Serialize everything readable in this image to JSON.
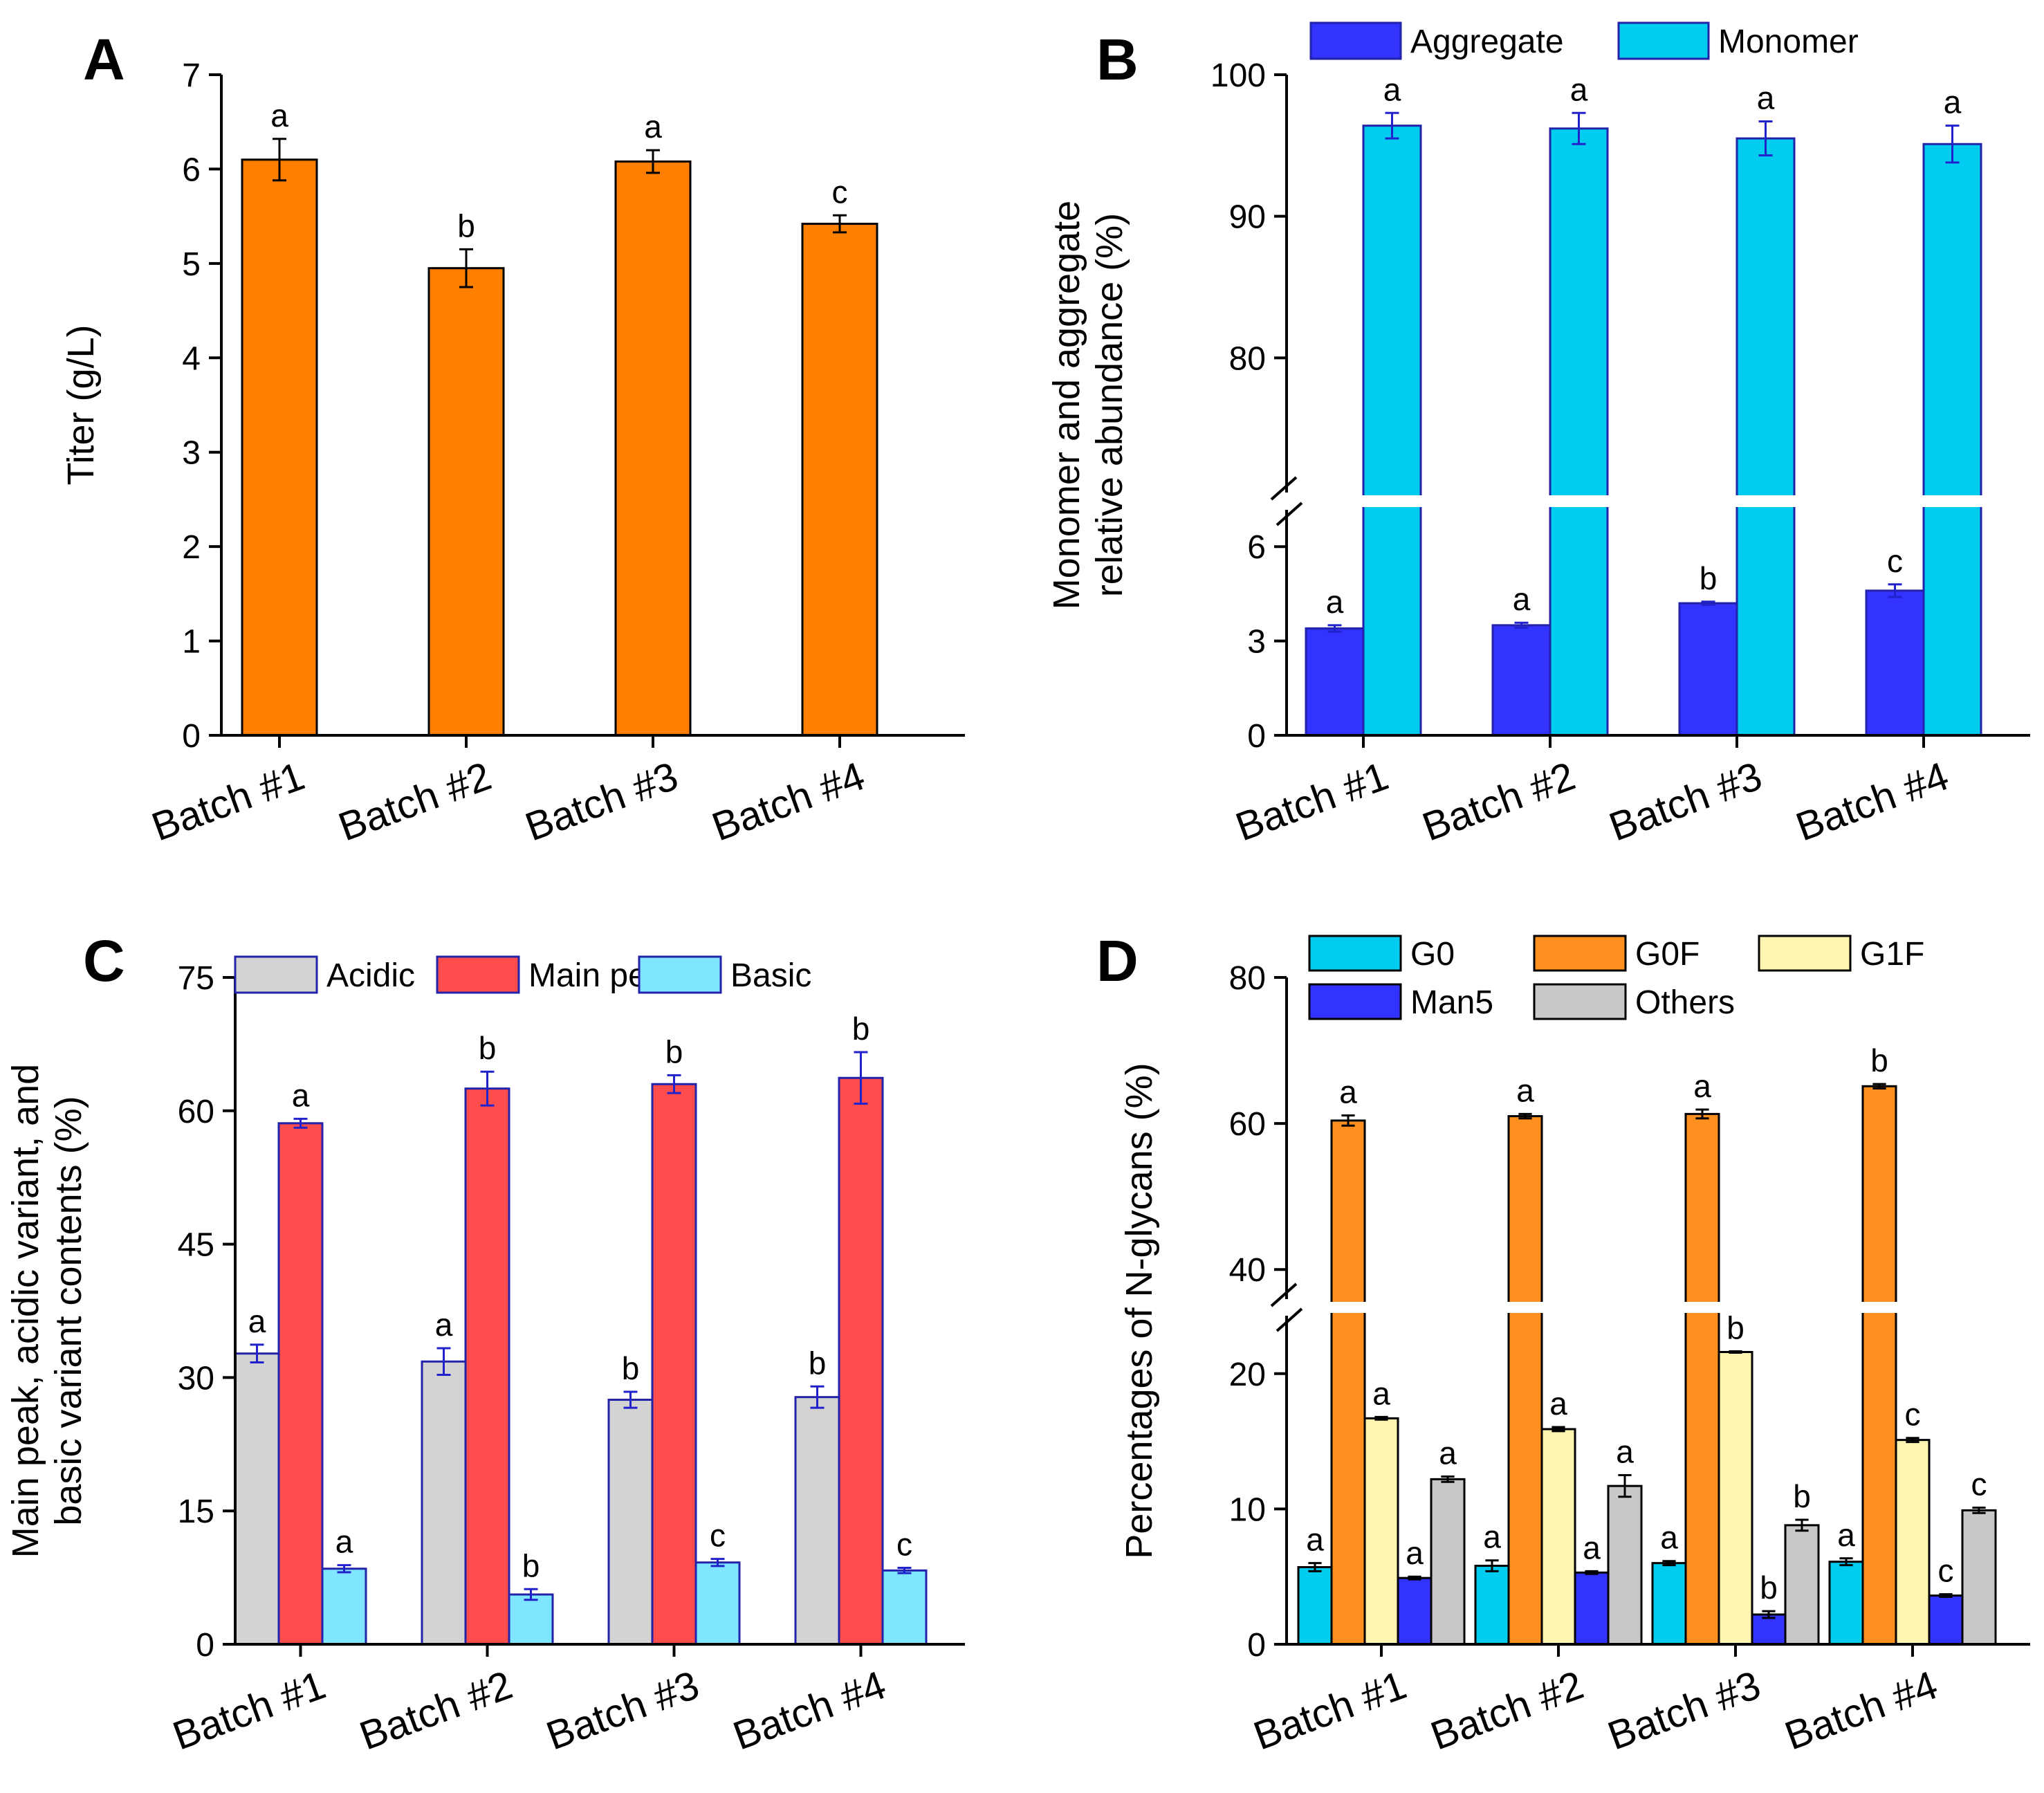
{
  "chart_data": [
    {
      "panel": "A",
      "type": "bar",
      "categories": [
        "Batch #1",
        "Batch #2",
        "Batch #3",
        "Batch #4"
      ],
      "ylabel": "Titer (g/L)",
      "ylim": [
        0,
        7
      ],
      "yticks": [
        0,
        1,
        2,
        3,
        4,
        5,
        6,
        7
      ],
      "series": [
        {
          "name": "Titer",
          "color": "#ff8000",
          "values": [
            6.1,
            4.95,
            6.08,
            5.42
          ],
          "errors": [
            0.22,
            0.2,
            0.12,
            0.09
          ],
          "labels": [
            "a",
            "b",
            "a",
            "c"
          ]
        }
      ]
    },
    {
      "panel": "B",
      "type": "bar",
      "categories": [
        "Batch #1",
        "Batch #2",
        "Batch #3",
        "Batch #4"
      ],
      "ylabel": "Monomer and aggregate relative abundance (%)",
      "ylabel_lines": [
        "Monomer and aggregate",
        "relative abundance (%)"
      ],
      "axis_break": {
        "lower": [
          0,
          7.5
        ],
        "upper": [
          70,
          100
        ]
      },
      "yticks": [
        0,
        3,
        6,
        80,
        90,
        100
      ],
      "legend": "top",
      "series": [
        {
          "name": "Aggregate",
          "color": "#3333ff",
          "values": [
            3.4,
            3.5,
            4.2,
            4.6
          ],
          "errors": [
            0.1,
            0.08,
            0.05,
            0.2
          ],
          "labels": [
            "a",
            "a",
            "b",
            "c"
          ]
        },
        {
          "name": "Monomer",
          "color": "#00ccf0",
          "values": [
            96.4,
            96.2,
            95.5,
            95.1
          ],
          "errors": [
            0.9,
            1.1,
            1.2,
            1.3
          ],
          "labels": [
            "a",
            "a",
            "a",
            "a"
          ]
        }
      ]
    },
    {
      "panel": "C",
      "type": "bar",
      "categories": [
        "Batch #1",
        "Batch #2",
        "Batch #3",
        "Batch #4"
      ],
      "ylabel": "Main peak, acidic variant, and basic variant contents (%)",
      "ylabel_lines": [
        "Main peak, acidic variant, and",
        "basic variant contents (%)"
      ],
      "ylim": [
        0,
        75
      ],
      "yticks": [
        0,
        15,
        30,
        45,
        60,
        75
      ],
      "legend": "top",
      "series": [
        {
          "name": "Acidic",
          "color": "#d3d3d3",
          "values": [
            32.7,
            31.8,
            27.5,
            27.8
          ],
          "errors": [
            1.0,
            1.5,
            0.9,
            1.2
          ],
          "labels": [
            "a",
            "a",
            "b",
            "b"
          ]
        },
        {
          "name": "Main peak",
          "color": "#ff4d4d",
          "values": [
            58.6,
            62.5,
            63.0,
            63.7
          ],
          "errors": [
            0.5,
            1.9,
            1.0,
            2.9
          ],
          "labels": [
            "a",
            "b",
            "b",
            "b"
          ]
        },
        {
          "name": "Basic",
          "color": "#80e6ff",
          "values": [
            8.5,
            5.6,
            9.2,
            8.3
          ],
          "errors": [
            0.4,
            0.6,
            0.4,
            0.3
          ],
          "labels": [
            "a",
            "b",
            "c",
            "c"
          ]
        }
      ]
    },
    {
      "panel": "D",
      "type": "bar",
      "categories": [
        "Batch #1",
        "Batch #2",
        "Batch #3",
        "Batch #4"
      ],
      "ylabel": "Percentages of N-glycans (%)",
      "axis_break": {
        "lower": [
          0,
          25
        ],
        "upper": [
          35,
          80
        ]
      },
      "yticks": [
        0,
        10,
        20,
        40,
        60,
        80
      ],
      "legend": "top",
      "series": [
        {
          "name": "G0",
          "color": "#00ccf0",
          "values": [
            5.7,
            5.8,
            6.0,
            6.1
          ],
          "errors": [
            0.3,
            0.4,
            0.15,
            0.25
          ],
          "labels": [
            "a",
            "a",
            "a",
            "a"
          ]
        },
        {
          "name": "G0F",
          "color": "#ff9020",
          "values": [
            60.4,
            61.0,
            61.3,
            65.1
          ],
          "errors": [
            0.7,
            0.3,
            0.6,
            0.3
          ],
          "labels": [
            "a",
            "a",
            "a",
            "b"
          ]
        },
        {
          "name": "G1F",
          "color": "#fff5b0",
          "values": [
            16.7,
            15.9,
            21.6,
            15.1
          ],
          "errors": [
            0.1,
            0.15,
            0.05,
            0.15
          ],
          "labels": [
            "a",
            "a",
            "b",
            "c"
          ]
        },
        {
          "name": "Man5",
          "color": "#3333ff",
          "values": [
            4.9,
            5.3,
            2.2,
            3.6
          ],
          "errors": [
            0.1,
            0.1,
            0.25,
            0.1
          ],
          "labels": [
            "a",
            "a",
            "b",
            "c"
          ]
        },
        {
          "name": "Others",
          "color": "#c8c8c8",
          "values": [
            12.2,
            11.7,
            8.8,
            9.9
          ],
          "errors": [
            0.2,
            0.8,
            0.4,
            0.2
          ],
          "labels": [
            "a",
            "a",
            "b",
            "c"
          ]
        }
      ]
    }
  ]
}
